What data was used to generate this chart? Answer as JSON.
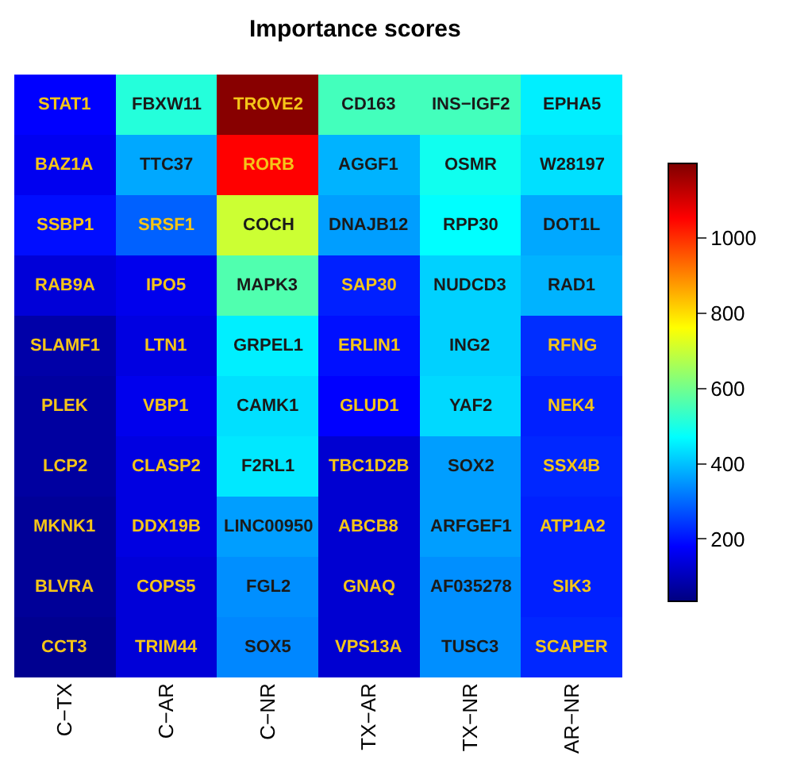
{
  "chart_data": {
    "type": "heatmap",
    "title": "Importance scores",
    "categories": [
      "C−TX",
      "C−AR",
      "C−NR",
      "TX−AR",
      "TX−NR",
      "AR−NR"
    ],
    "y_categories": [
      null,
      null,
      null,
      null,
      null,
      null,
      null,
      null,
      null,
      null
    ],
    "tick_labels": "x",
    "cells": [
      [
        181,
        513,
        1190,
        548,
        548,
        454
      ],
      [
        163,
        373,
        1054,
        385,
        490,
        437
      ],
      [
        195,
        291,
        705,
        361,
        472,
        373
      ],
      [
        136,
        160,
        563,
        217,
        419,
        385
      ],
      [
        82,
        146,
        454,
        198,
        419,
        233
      ],
      [
        72,
        160,
        437,
        181,
        428,
        217
      ],
      [
        72,
        146,
        446,
        128,
        361,
        225
      ],
      [
        63,
        146,
        361,
        128,
        361,
        217
      ],
      [
        63,
        136,
        344,
        128,
        344,
        217
      ],
      [
        54,
        136,
        335,
        128,
        344,
        225
      ]
    ],
    "cell_labels": [
      [
        "STAT1",
        "FBXW11",
        "TROVE2",
        "CD163",
        "INS−IGF2",
        "EPHA5"
      ],
      [
        "BAZ1A",
        "TTC37",
        "RORB",
        "AGGF1",
        "OSMR",
        "W28197"
      ],
      [
        "SSBP1",
        "SRSF1",
        "COCH",
        "DNAJB12",
        "RPP30",
        "DOT1L"
      ],
      [
        "RAB9A",
        "IPO5",
        "MAPK3",
        "SAP30",
        "NUDCD3",
        "RAD1"
      ],
      [
        "SLAMF1",
        "LTN1",
        "GRPEL1",
        "ERLIN1",
        "ING2",
        "RFNG"
      ],
      [
        "PLEK",
        "VBP1",
        "CAMK1",
        "GLUD1",
        "YAF2",
        "NEK4"
      ],
      [
        "LCP2",
        "CLASP2",
        "F2RL1",
        "TBC1D2B",
        "SOX2",
        "SSX4B"
      ],
      [
        "MKNK1",
        "DDX19B",
        "LINC00950",
        "ABCB8",
        "ARFGEF1",
        "ATP1A2"
      ],
      [
        "BLVRA",
        "COPS5",
        "FGL2",
        "GNAQ",
        "AF035278",
        "SIK3"
      ],
      [
        "CCT3",
        "TRIM44",
        "SOX5",
        "VPS13A",
        "TUSC3",
        "SCAPER"
      ]
    ],
    "clim": [
      35,
      1200
    ],
    "cticks": [
      200,
      400,
      600,
      800,
      1000
    ]
  }
}
